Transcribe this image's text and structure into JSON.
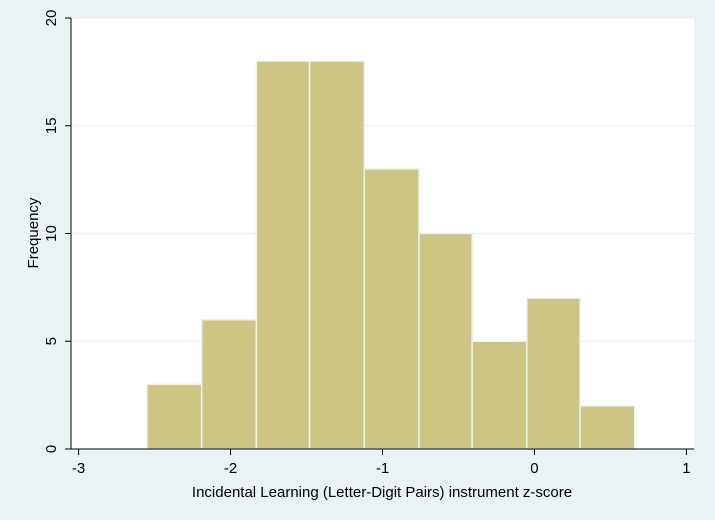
{
  "chart_data": {
    "type": "bar",
    "title": "",
    "xlabel": "Incidental Learning (Letter-Digit Pairs) instrument z-score",
    "ylabel": "Frequency",
    "xlim": [
      -3.05,
      1.05
    ],
    "ylim": [
      0,
      20
    ],
    "x_ticks": [
      -3,
      -2,
      -1,
      0,
      1
    ],
    "x_tick_labels": [
      "-3",
      "-2",
      "-1",
      "0",
      "1"
    ],
    "y_ticks": [
      0,
      5,
      10,
      15,
      20
    ],
    "y_tick_labels": [
      "0",
      "5",
      "10",
      "15",
      "20"
    ],
    "grid": true,
    "bin_edges": [
      -2.55,
      -2.19,
      -1.83,
      -1.48,
      -1.12,
      -0.76,
      -0.41,
      -0.05,
      0.3,
      0.66
    ],
    "values": [
      3,
      6,
      18,
      18,
      13,
      10,
      5,
      7,
      2
    ],
    "colors": {
      "bar_fill": "#cdc584",
      "bar_stroke": "#eaf2f3",
      "plot_bg": "#ffffff",
      "page_bg": "#eaf2f3",
      "grid": "#e8eeee",
      "axis": "#000000"
    }
  }
}
